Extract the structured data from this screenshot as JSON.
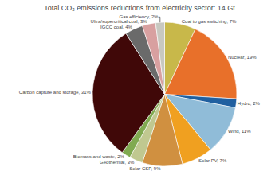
{
  "chart_data": {
    "type": "pie",
    "title": "Total CO₂ emissions reductions from electricity sector: 14 Gt",
    "categories": [
      "Coal to gas switching, 7%",
      "Nuclear, 19%",
      "Hydro, 2%",
      "Wind, 11%",
      "Solar PV, 7%",
      "Solar CSP, 9%",
      "Geothermal, 3%",
      "Biomass and waste, 2%",
      "Carbon capture and storage, 31%",
      "IGCC coal, 4%",
      "Ultra/supercritical coal, 3%",
      "Gas efficiency, 2%"
    ],
    "values": [
      7,
      19,
      2,
      11,
      7,
      9,
      3,
      2,
      31,
      4,
      3,
      2
    ],
    "colors": [
      "#c8b84a",
      "#e8702a",
      "#2060a0",
      "#90bcd8",
      "#f0a020",
      "#d09040",
      "#c0c890",
      "#80aa50",
      "#400808",
      "#6a6a6a",
      "#d8a0a0",
      "#c8c8c0"
    ]
  }
}
